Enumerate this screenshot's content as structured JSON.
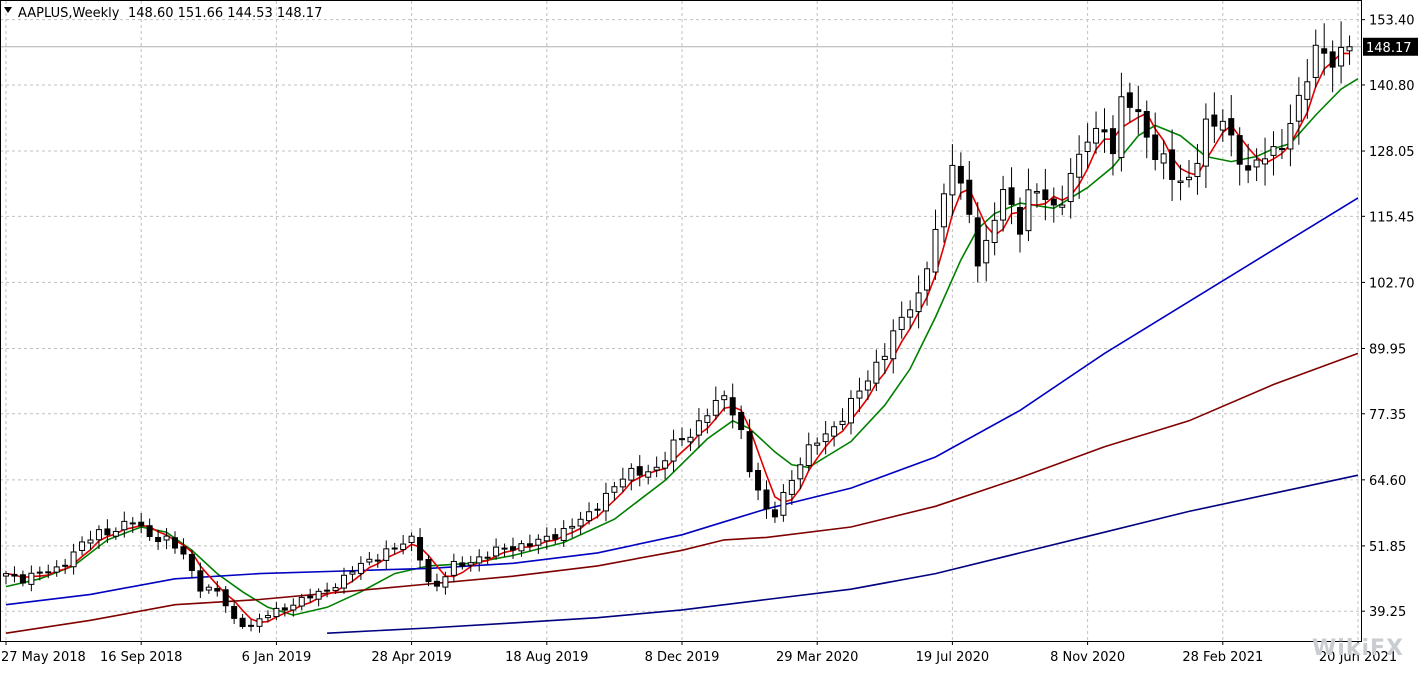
{
  "header": {
    "symbol": "AAPLUS,Weekly",
    "ohlc": "148.60 151.66 144.53 148.17"
  },
  "current_price_label": "148.17",
  "watermark": "WikiFX",
  "colors": {
    "background": "#ffffff",
    "grid": "#c0c0c0",
    "candle_bull": "#ffffff",
    "candle_bear": "#000000",
    "ma_fast": "#e00000",
    "ma_mid": "#008000",
    "ma_slow1": "#0000c0",
    "ma_slow2": "#800000",
    "ma_slow3": "#000080"
  },
  "chart_data": {
    "type": "candlestick",
    "ylim": [
      33.5,
      157.0
    ],
    "y_ticks": [
      "39.25",
      "51.85",
      "64.60",
      "77.35",
      "89.95",
      "102.70",
      "115.45",
      "128.05",
      "140.80",
      "153.40"
    ],
    "x_tick_labels": [
      {
        "week": 0,
        "label": "27 May 2018"
      },
      {
        "week": 16,
        "label": "16 Sep 2018"
      },
      {
        "week": 32,
        "label": "6 Jan 2019"
      },
      {
        "week": 48,
        "label": "28 Apr 2019"
      },
      {
        "week": 64,
        "label": "18 Aug 2019"
      },
      {
        "week": 80,
        "label": "8 Dec 2019"
      },
      {
        "week": 96,
        "label": "29 Mar 2020"
      },
      {
        "week": 112,
        "label": "19 Jul 2020"
      },
      {
        "week": 128,
        "label": "8 Nov 2020"
      },
      {
        "week": 144,
        "label": "28 Feb 2021"
      },
      {
        "week": 160,
        "label": "20 Jun 2021"
      }
    ],
    "last_close": 148.17,
    "close_anchors": [
      [
        0,
        46.5
      ],
      [
        2,
        45.5
      ],
      [
        4,
        46.5
      ],
      [
        6,
        47.5
      ],
      [
        9,
        52
      ],
      [
        11,
        54.5
      ],
      [
        13,
        55
      ],
      [
        15,
        56.5
      ],
      [
        17,
        54
      ],
      [
        19,
        53
      ],
      [
        21,
        50
      ],
      [
        23,
        44
      ],
      [
        25,
        43
      ],
      [
        27,
        37.5
      ],
      [
        29,
        36.5
      ],
      [
        31,
        38.5
      ],
      [
        33,
        40
      ],
      [
        35,
        41.5
      ],
      [
        37,
        42.5
      ],
      [
        39,
        44.5
      ],
      [
        41,
        47
      ],
      [
        43,
        49
      ],
      [
        45,
        51
      ],
      [
        47,
        52
      ],
      [
        48,
        53
      ],
      [
        49,
        50
      ],
      [
        50,
        45
      ],
      [
        51,
        44
      ],
      [
        52,
        46
      ],
      [
        53,
        48
      ],
      [
        55,
        49
      ],
      [
        57,
        50
      ],
      [
        59,
        51.5
      ],
      [
        61,
        52
      ],
      [
        63,
        52.5
      ],
      [
        65,
        54
      ],
      [
        67,
        56
      ],
      [
        69,
        57.5
      ],
      [
        71,
        62
      ],
      [
        73,
        65
      ],
      [
        75,
        66
      ],
      [
        77,
        67
      ],
      [
        79,
        71
      ],
      [
        81,
        73.5
      ],
      [
        83,
        78
      ],
      [
        84,
        79
      ],
      [
        85,
        80
      ],
      [
        86,
        78
      ],
      [
        87,
        74
      ],
      [
        88,
        67
      ],
      [
        89,
        62.5
      ],
      [
        90,
        58
      ],
      [
        91,
        58
      ],
      [
        92,
        62
      ],
      [
        94,
        68
      ],
      [
        96,
        72
      ],
      [
        98,
        75
      ],
      [
        100,
        79
      ],
      [
        102,
        84
      ],
      [
        104,
        90
      ],
      [
        106,
        95
      ],
      [
        107,
        98
      ],
      [
        108,
        100
      ],
      [
        109,
        107
      ],
      [
        110,
        113
      ],
      [
        111,
        118
      ],
      [
        112,
        126
      ],
      [
        113,
        121
      ],
      [
        114,
        117
      ],
      [
        115,
        107
      ],
      [
        116,
        109
      ],
      [
        117,
        115
      ],
      [
        118,
        120
      ],
      [
        119,
        118
      ],
      [
        120,
        114
      ],
      [
        121,
        119
      ],
      [
        122,
        120
      ],
      [
        124,
        117
      ],
      [
        126,
        123
      ],
      [
        128,
        130
      ],
      [
        129,
        131
      ],
      [
        130,
        134
      ],
      [
        131,
        128
      ],
      [
        132,
        137
      ],
      [
        133,
        137
      ],
      [
        134,
        134
      ],
      [
        135,
        132
      ],
      [
        136,
        128
      ],
      [
        137,
        126
      ],
      [
        138,
        123
      ],
      [
        139,
        121
      ],
      [
        140,
        123
      ],
      [
        142,
        133
      ],
      [
        144,
        133
      ],
      [
        145,
        130
      ],
      [
        146,
        128
      ],
      [
        147,
        124
      ],
      [
        148,
        126
      ],
      [
        150,
        127
      ],
      [
        152,
        134
      ],
      [
        154,
        142
      ],
      [
        155,
        146
      ],
      [
        156,
        148
      ],
      [
        157,
        146
      ],
      [
        158,
        147
      ],
      [
        159,
        148.17
      ]
    ],
    "ma_sets": [
      {
        "points": [
          [
            0,
            44
          ],
          [
            4,
            45.5
          ],
          [
            8,
            48
          ],
          [
            12,
            53
          ],
          [
            16,
            55.5
          ],
          [
            19,
            54.5
          ],
          [
            22,
            51
          ],
          [
            25,
            46.5
          ],
          [
            28,
            43
          ],
          [
            31,
            40
          ],
          [
            34,
            38.5
          ],
          [
            38,
            40
          ],
          [
            42,
            43
          ],
          [
            46,
            46.5
          ],
          [
            50,
            48
          ],
          [
            55,
            48.5
          ],
          [
            60,
            50
          ],
          [
            66,
            52.5
          ],
          [
            72,
            57
          ],
          [
            78,
            64.5
          ],
          [
            83,
            72.5
          ],
          [
            86,
            76
          ],
          [
            88,
            74.5
          ],
          [
            91,
            70
          ],
          [
            93,
            67.5
          ],
          [
            95,
            67
          ],
          [
            97,
            69
          ],
          [
            100,
            72
          ],
          [
            104,
            79
          ],
          [
            107,
            86
          ],
          [
            110,
            96
          ],
          [
            113,
            107
          ],
          [
            115,
            113
          ],
          [
            117,
            116
          ],
          [
            120,
            118
          ],
          [
            124,
            117
          ],
          [
            128,
            121
          ],
          [
            131,
            125
          ],
          [
            134,
            131
          ],
          [
            136,
            133
          ],
          [
            139,
            131
          ],
          [
            142,
            127
          ],
          [
            145,
            126
          ],
          [
            148,
            127
          ],
          [
            150,
            128.5
          ],
          [
            152,
            129.5
          ],
          [
            155,
            135
          ],
          [
            158,
            140
          ],
          [
            160,
            142
          ]
        ]
      },
      {
        "points": [
          [
            0,
            40.5
          ],
          [
            10,
            42.5
          ],
          [
            20,
            45.5
          ],
          [
            30,
            46.5
          ],
          [
            40,
            47
          ],
          [
            50,
            47.5
          ],
          [
            60,
            48.5
          ],
          [
            70,
            50.5
          ],
          [
            80,
            54
          ],
          [
            85,
            56.5
          ],
          [
            90,
            59
          ],
          [
            100,
            63
          ],
          [
            110,
            69
          ],
          [
            120,
            78
          ],
          [
            130,
            89
          ],
          [
            140,
            99
          ],
          [
            150,
            109
          ],
          [
            160,
            119
          ]
        ]
      },
      {
        "points": [
          [
            0,
            35
          ],
          [
            10,
            37.5
          ],
          [
            20,
            40.5
          ],
          [
            30,
            41.5
          ],
          [
            40,
            43
          ],
          [
            50,
            44.5
          ],
          [
            60,
            46
          ],
          [
            70,
            48
          ],
          [
            80,
            51
          ],
          [
            85,
            53
          ],
          [
            90,
            53.5
          ],
          [
            100,
            55.5
          ],
          [
            110,
            59.5
          ],
          [
            120,
            65
          ],
          [
            130,
            71
          ],
          [
            140,
            76
          ],
          [
            150,
            83
          ],
          [
            160,
            89
          ]
        ]
      },
      {
        "points": [
          [
            38,
            35
          ],
          [
            50,
            36
          ],
          [
            60,
            37
          ],
          [
            70,
            38
          ],
          [
            80,
            39.5
          ],
          [
            90,
            41.5
          ],
          [
            100,
            43.5
          ],
          [
            110,
            46.5
          ],
          [
            120,
            50.5
          ],
          [
            130,
            54.5
          ],
          [
            140,
            58.5
          ],
          [
            150,
            62
          ],
          [
            160,
            65.5
          ]
        ]
      }
    ]
  }
}
